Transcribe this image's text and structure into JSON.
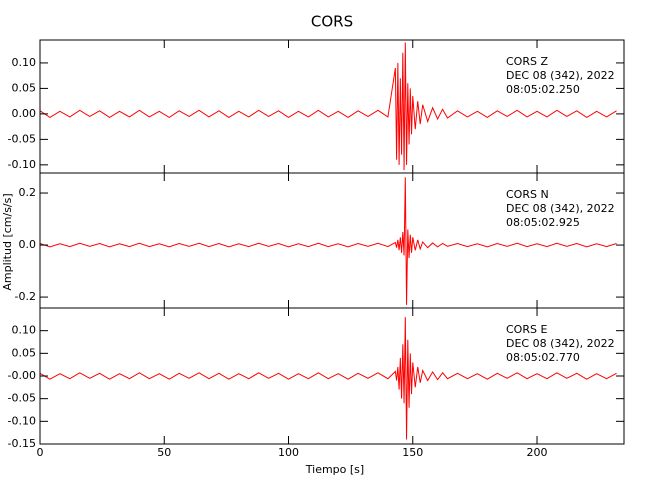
{
  "chart_data": {
    "type": "line",
    "title": "CORS",
    "x_label": "Tiempo [s]",
    "y_label": "Amplitud [cm/s/s]",
    "xlim": [
      0,
      235
    ],
    "xticks": [
      0,
      50,
      100,
      150,
      200
    ],
    "x": [
      0,
      4,
      8,
      12,
      16,
      20,
      24,
      28,
      32,
      36,
      40,
      44,
      48,
      52,
      56,
      60,
      64,
      68,
      72,
      76,
      80,
      84,
      88,
      92,
      96,
      100,
      104,
      108,
      112,
      116,
      120,
      124,
      128,
      132,
      136,
      140,
      143,
      143.5,
      144,
      144.5,
      145,
      145.5,
      146,
      146.5,
      147,
      147.5,
      148,
      148.5,
      149,
      149.5,
      150,
      151,
      152,
      153,
      154,
      156,
      158,
      160,
      162,
      164,
      168,
      172,
      176,
      180,
      184,
      188,
      192,
      196,
      200,
      204,
      208,
      212,
      216,
      220,
      224,
      228,
      232
    ],
    "panels": [
      {
        "annotation": [
          "CORS   Z",
          "DEC 08 (342), 2022",
          "08:05:02.250"
        ],
        "color": "#ff0000",
        "ylim": [
          -0.116,
          0.145
        ],
        "yticks": [
          {
            "value": 0.1,
            "label": "0.10"
          },
          {
            "value": 0.05,
            "label": "0.05"
          },
          {
            "value": 0,
            "label": "0.00"
          },
          {
            "value": -0.05,
            "label": "-0.05"
          },
          {
            "value": -0.1,
            "label": "-0.10"
          }
        ],
        "values": [
          0.006,
          -0.007,
          0.005,
          -0.006,
          0.007,
          -0.005,
          0.006,
          -0.007,
          0.005,
          -0.006,
          0.007,
          -0.006,
          0.005,
          -0.007,
          0.006,
          -0.005,
          0.007,
          -0.006,
          0.006,
          -0.007,
          0.005,
          -0.006,
          0.007,
          -0.005,
          0.006,
          -0.007,
          0.005,
          -0.006,
          0.007,
          -0.006,
          0.005,
          -0.007,
          0.006,
          -0.005,
          0.007,
          -0.006,
          0.09,
          -0.09,
          0.1,
          -0.1,
          0.07,
          -0.08,
          0.12,
          -0.11,
          0.14,
          -0.1,
          0.06,
          -0.06,
          0.05,
          -0.04,
          0.035,
          -0.03,
          0.025,
          -0.02,
          0.018,
          -0.015,
          0.012,
          -0.01,
          0.009,
          -0.008,
          0.006,
          -0.006,
          0.005,
          -0.007,
          0.006,
          -0.005,
          0.007,
          -0.006,
          0.005,
          -0.006,
          0.007,
          -0.005,
          0.006,
          -0.007,
          0.005,
          -0.006,
          0.006
        ]
      },
      {
        "annotation": [
          "CORS   N",
          "DEC 08 (342), 2022",
          "08:05:02.925"
        ],
        "color": "#ff0000",
        "ylim": [
          -0.242,
          0.277
        ],
        "yticks": [
          0.2,
          {
            "value": 0,
            "label": "0.0"
          },
          -0.2
        ],
        "values": [
          0.006,
          -0.007,
          0.005,
          -0.006,
          0.007,
          -0.005,
          0.006,
          -0.007,
          0.005,
          -0.006,
          0.007,
          -0.006,
          0.005,
          -0.007,
          0.006,
          -0.005,
          0.007,
          -0.006,
          0.006,
          -0.007,
          0.005,
          -0.006,
          0.007,
          -0.005,
          0.006,
          -0.007,
          0.005,
          -0.006,
          0.007,
          -0.006,
          0.005,
          -0.007,
          0.006,
          -0.005,
          0.007,
          -0.006,
          0.01,
          -0.01,
          0.02,
          -0.02,
          0.03,
          -0.03,
          0.05,
          -0.04,
          0.26,
          -0.23,
          0.06,
          -0.05,
          0.04,
          -0.03,
          0.03,
          -0.02,
          0.02,
          -0.015,
          0.012,
          -0.01,
          0.008,
          -0.007,
          0.006,
          -0.005,
          0.006,
          -0.006,
          0.005,
          -0.007,
          0.006,
          -0.005,
          0.007,
          -0.006,
          0.005,
          -0.006,
          0.007,
          -0.005,
          0.006,
          -0.007,
          0.005,
          -0.006,
          0.006
        ]
      },
      {
        "annotation": [
          "CORS   E",
          "DEC 08 (342), 2022",
          "08:05:02.770"
        ],
        "color": "#ff0000",
        "ylim": [
          -0.15,
          0.15
        ],
        "yticks": [
          {
            "value": 0.1,
            "label": "0.10"
          },
          {
            "value": 0.05,
            "label": "0.05"
          },
          {
            "value": 0,
            "label": "-0.00"
          },
          {
            "value": -0.05,
            "label": "-0.05"
          },
          {
            "value": -0.1,
            "label": "-0.10"
          },
          {
            "value": -0.15,
            "label": "-0.15"
          }
        ],
        "values": [
          0.006,
          -0.007,
          0.005,
          -0.006,
          0.007,
          -0.005,
          0.006,
          -0.007,
          0.005,
          -0.006,
          0.007,
          -0.006,
          0.005,
          -0.007,
          0.006,
          -0.005,
          0.007,
          -0.006,
          0.006,
          -0.007,
          0.005,
          -0.006,
          0.007,
          -0.005,
          0.006,
          -0.007,
          0.005,
          -0.006,
          0.007,
          -0.006,
          0.005,
          -0.007,
          0.006,
          -0.005,
          0.007,
          -0.006,
          0.01,
          -0.01,
          0.02,
          -0.03,
          0.04,
          -0.05,
          0.07,
          -0.06,
          0.13,
          -0.14,
          0.08,
          -0.07,
          0.05,
          -0.04,
          0.03,
          -0.025,
          0.02,
          -0.015,
          0.012,
          -0.01,
          0.009,
          -0.008,
          0.007,
          -0.006,
          0.006,
          -0.006,
          0.005,
          -0.007,
          0.006,
          -0.005,
          0.007,
          -0.006,
          0.005,
          -0.006,
          0.007,
          -0.005,
          0.006,
          -0.007,
          0.005,
          -0.006,
          0.006
        ]
      }
    ]
  }
}
